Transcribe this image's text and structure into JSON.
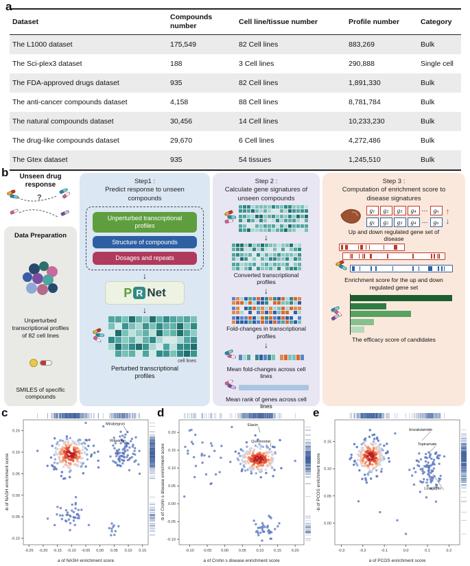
{
  "panels": {
    "a": "a",
    "b": "b",
    "c": "c",
    "d": "d",
    "e": "e"
  },
  "table": {
    "headers": [
      "Dataset",
      "Compounds number",
      "Cell line/tissue number",
      "Profile number",
      "Category"
    ],
    "rows": [
      [
        "The L1000 dataset",
        "175,549",
        "82 Cell lines",
        "883,269",
        "Bulk"
      ],
      [
        "The Sci-plex3 dataset",
        "188",
        "3 Cell lines",
        "290,888",
        "Single cell"
      ],
      [
        "The FDA-approved drugs dataset",
        "935",
        "82 Cell lines",
        "1,891,330",
        "Bulk"
      ],
      [
        "The anti-cancer compounds dataset",
        "4,158",
        "88 Cell lines",
        "8,781,784",
        "Bulk"
      ],
      [
        "The natural compounds dataset",
        "30,456",
        "14 Cell lines",
        "10,233,230",
        "Bulk"
      ],
      [
        "The drug-like compounds dataset",
        "29,670",
        "6 Cell lines",
        "4,272,486",
        "Bulk"
      ],
      [
        "The Gtex dataset",
        "935",
        "54 tissues",
        "1,245,510",
        "Bulk"
      ]
    ]
  },
  "diagram": {
    "arrow_down": "↓",
    "left": {
      "title": "Unseen drug response",
      "question_mark": "?",
      "data_preparation": "Data Preparation",
      "unperturbed": "Unperturbed transcriptional profiles of 82 cell lines",
      "smiles": "SMILES of specific compounds"
    },
    "step1": {
      "heading": "Step1 :",
      "subtitle": "Predict response to unseen compounds",
      "inputs": [
        {
          "label": "Unperturbed transcriptional profiles",
          "color": "#5f9e3e"
        },
        {
          "label": "Structure of compounds",
          "color": "#2e5fa3"
        },
        {
          "label": "Dosages and repeats",
          "color": "#b03a5b"
        }
      ],
      "logo": {
        "p": "P",
        "r": "R",
        "net": "Net"
      },
      "cell_lines_note": "cell lines",
      "output_label": "Perturbed transcriptional profiles"
    },
    "step2": {
      "heading": "Step 2 :",
      "subtitle": "Calculate gene signatures of unseen compounds",
      "label_converted": "Converted transcriptional profiles",
      "label_fold": "Fold-changes in transcriptional profiles",
      "label_mean_fold": "Mean fold-changes across cell lines",
      "label_mean_rank": "Mean rank of genes across cell lines"
    },
    "step3": {
      "heading": "Step 3 :",
      "subtitle": "Computation of enrichment score to disease signatures",
      "gene_base": "g",
      "gene_subs": [
        "1",
        "2",
        "3",
        "4",
        "dots",
        "n"
      ],
      "dots_glyph": "…",
      "up_arrow": "↑",
      "down_arrow": "↓",
      "label_gene_set": "Up and down regulated gene set of disease",
      "label_enrichment": "Enrichment score for the up and down regulated gene set",
      "label_efficacy": "The efficacy score of candidates",
      "bar_widths": [
        148,
        52,
        88,
        34,
        20
      ],
      "bar_colors": [
        "#1d5e2f",
        "#2f7d43",
        "#57a161",
        "#86c08e",
        "#b5d9ba"
      ]
    },
    "palettes": {
      "teal": [
        "#1f6f6b",
        "#2e8b85",
        "#4da79e",
        "#79c2b8",
        "#a8d8d0",
        "#d5ebe6",
        "#3b958d",
        "#63b2a8",
        "#8ccbc1",
        "#bfe1da"
      ],
      "mixed": [
        "#d9692a",
        "#e08b4e",
        "#2e5fa3",
        "#5b84c4",
        "#2e8b85",
        "#79c2b8",
        "#e8e8e8",
        "#d9692a",
        "#4da79e",
        "#2e5fa3",
        "#a8d8d0",
        "#e08b4e"
      ]
    },
    "pill_colors": [
      [
        "#e3b231",
        "#c0392b"
      ],
      [
        "#2e86ab",
        "#7fd0c8"
      ],
      [
        "#d1608f",
        "#f2f2f2"
      ],
      [
        "#7a4fa0",
        "#cfc3e8"
      ]
    ],
    "colors": {
      "step1_bg": "#dbe7f3",
      "step2_bg": "#e8e6f3",
      "step3_bg": "#fbe8dc",
      "left_bg": "#e9e9e6"
    }
  },
  "chart_data": [
    {
      "id": "c",
      "type": "scatter",
      "xlabel": "a of NASH enrichment score",
      "ylabel": "-b of NASH enrichment score",
      "xlim": [
        -0.27,
        0.17
      ],
      "ylim": [
        -0.115,
        0.175
      ],
      "xticks": [
        [
          -0.25,
          "-0.25"
        ],
        [
          -0.2,
          "-0.20"
        ],
        [
          -0.15,
          "-0.15"
        ],
        [
          -0.1,
          "-0.10"
        ],
        [
          -0.05,
          "-0.05"
        ],
        [
          0.0,
          "0.00"
        ],
        [
          0.05,
          "0.05"
        ],
        [
          0.1,
          "0.10"
        ],
        [
          0.15,
          "0.15"
        ]
      ],
      "yticks": [
        [
          -0.1,
          "-0.10"
        ],
        [
          -0.05,
          "-0.05"
        ],
        [
          0.0,
          "0.00"
        ],
        [
          0.05,
          "0.05"
        ],
        [
          0.1,
          "0.10"
        ],
        [
          0.15,
          "0.15"
        ]
      ],
      "clusters": [
        {
          "cx": -0.105,
          "cy": 0.095,
          "sx": 0.032,
          "sy": 0.02,
          "n": 230,
          "style": "density"
        },
        {
          "cx": 0.085,
          "cy": 0.1,
          "sx": 0.022,
          "sy": 0.02,
          "n": 85,
          "style": "plain"
        },
        {
          "cx": -0.1,
          "cy": -0.045,
          "sx": 0.028,
          "sy": 0.016,
          "n": 40,
          "style": "plain"
        },
        {
          "cx": 0.05,
          "cy": -0.075,
          "sx": 0.012,
          "sy": 0.01,
          "n": 10,
          "style": "plain"
        }
      ],
      "extra_points": [
        [
          -0.22,
          0.103
        ],
        [
          -0.05,
          0.168
        ],
        [
          0.012,
          0.16
        ],
        [
          0.14,
          0.05
        ]
      ],
      "annotations": [
        {
          "label": "Mirabegron",
          "px": 0.098,
          "py": 0.145,
          "lx": 0.02,
          "ly": 0.163
        },
        {
          "label": "Rifaximin",
          "px": 0.102,
          "py": 0.118,
          "lx": 0.035,
          "ly": 0.124
        }
      ],
      "seed": 7
    },
    {
      "id": "d",
      "type": "scatter",
      "xlabel": "a of Crohn s disease enrichment score",
      "ylabel": "-b of Crohn s disease enrichment score",
      "xlim": [
        -0.13,
        0.225
      ],
      "ylim": [
        -0.115,
        0.235
      ],
      "xticks": [
        [
          -0.1,
          "-0.10"
        ],
        [
          -0.05,
          "-0.05"
        ],
        [
          0.0,
          "0.00"
        ],
        [
          0.05,
          "0.05"
        ],
        [
          0.1,
          "0.10"
        ],
        [
          0.15,
          "0.15"
        ],
        [
          0.2,
          "0.20"
        ]
      ],
      "yticks": [
        [
          -0.1,
          "-0.10"
        ],
        [
          -0.05,
          "-0.05"
        ],
        [
          0.0,
          "0.00"
        ],
        [
          0.05,
          "0.05"
        ],
        [
          0.1,
          "0.10"
        ],
        [
          0.15,
          "0.15"
        ],
        [
          0.2,
          "0.20"
        ]
      ],
      "clusters": [
        {
          "cx": 0.095,
          "cy": 0.125,
          "sx": 0.028,
          "sy": 0.02,
          "n": 230,
          "style": "density"
        },
        {
          "cx": -0.06,
          "cy": 0.13,
          "sx": 0.03,
          "sy": 0.035,
          "n": 28,
          "style": "plain"
        },
        {
          "cx": 0.12,
          "cy": -0.07,
          "sx": 0.018,
          "sy": 0.014,
          "n": 35,
          "style": "plain"
        }
      ],
      "extra_points": [
        [
          -0.1,
          0.205
        ],
        [
          0.02,
          0.215
        ],
        [
          0.2,
          0.12
        ],
        [
          -0.115,
          0.02
        ]
      ],
      "annotations": [
        {
          "label": "Elacin",
          "px": 0.1,
          "py": 0.2,
          "lx": 0.065,
          "ly": 0.218
        },
        {
          "label": "Quisinostat",
          "px": 0.13,
          "py": 0.16,
          "lx": 0.075,
          "ly": 0.172
        }
      ],
      "seed": 13
    },
    {
      "id": "e",
      "type": "scatter",
      "xlabel": "a of PCOS enrichment score",
      "ylabel": "-b of PCOS enrichment score",
      "xlim": [
        -0.33,
        0.25
      ],
      "ylim": [
        -0.04,
        0.19
      ],
      "xticks": [
        [
          -0.3,
          "-0.3"
        ],
        [
          -0.2,
          "-0.2"
        ],
        [
          -0.1,
          "-0.1"
        ],
        [
          0.0,
          "0.0"
        ],
        [
          0.1,
          "0.1"
        ],
        [
          0.2,
          "0.2"
        ]
      ],
      "yticks": [
        [
          0.0,
          "0.00"
        ],
        [
          0.05,
          "0.05"
        ],
        [
          0.1,
          "0.10"
        ],
        [
          0.15,
          "0.15"
        ]
      ],
      "clusters": [
        {
          "cx": -0.165,
          "cy": 0.122,
          "sx": 0.035,
          "sy": 0.016,
          "n": 230,
          "style": "density"
        },
        {
          "cx": 0.105,
          "cy": 0.1,
          "sx": 0.03,
          "sy": 0.022,
          "n": 90,
          "style": "plain"
        }
      ],
      "extra_points": [
        [
          -0.12,
          0.02
        ],
        [
          -0.04,
          0.005
        ],
        [
          0.0,
          -0.02
        ],
        [
          -0.22,
          0.04
        ],
        [
          -0.05,
          0.165
        ]
      ],
      "annotations": [
        {
          "label": "Enzalutamide",
          "px": 0.075,
          "py": 0.152,
          "lx": 0.015,
          "ly": 0.17
        },
        {
          "label": "Topiramate",
          "px": 0.105,
          "py": 0.128,
          "lx": 0.055,
          "ly": 0.143
        },
        {
          "label": "Linagliptin",
          "px": 0.125,
          "py": 0.09,
          "lx": 0.085,
          "ly": 0.062
        }
      ],
      "seed": 23
    }
  ]
}
